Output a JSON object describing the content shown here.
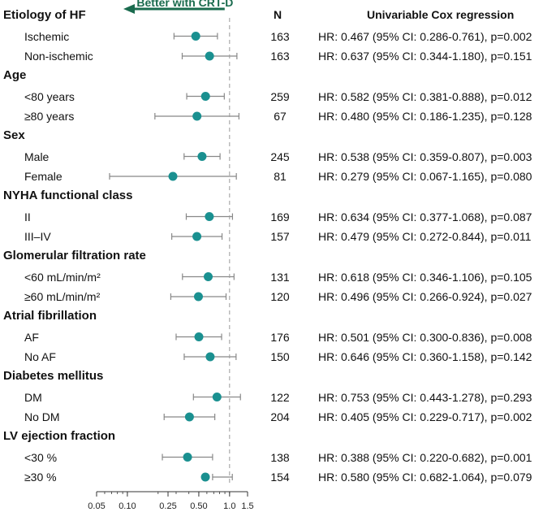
{
  "chart_data": {
    "type": "forest",
    "arrow_label": "Better with CRT-D",
    "n_header": "N",
    "stat_header": "Univariable Cox regression",
    "x_ticks": [
      0.05,
      0.1,
      0.25,
      0.5,
      1.0,
      1.5
    ],
    "x_tick_labels": [
      "0.05",
      "0.10",
      "0.25",
      "0.50",
      "1.0",
      "1.5"
    ],
    "x_scale": "log",
    "xlim": [
      0.05,
      1.5
    ],
    "reference_line": 1.0,
    "colors": {
      "point": "#1a9090",
      "ci": "#888888",
      "ref": "#999999",
      "arrow": "#1a6b4e"
    },
    "groups": [
      {
        "label": "Etiology of HF",
        "rows": [
          {
            "label": "Ischemic",
            "n": "163",
            "hr": 0.467,
            "lo": 0.286,
            "hi": 0.761,
            "text": "HR: 0.467 (95% CI: 0.286-0.761), p=0.002"
          },
          {
            "label": "Non-ischemic",
            "n": "163",
            "hr": 0.637,
            "lo": 0.344,
            "hi": 1.18,
            "text": "HR: 0.637 (95% CI: 0.344-1.180), p=0.151"
          }
        ]
      },
      {
        "label": "Age",
        "rows": [
          {
            "label": "<80 years",
            "n": "259",
            "hr": 0.582,
            "lo": 0.381,
            "hi": 0.888,
            "text": "HR: 0.582 (95% CI: 0.381-0.888), p=0.012"
          },
          {
            "label": "≥80 years",
            "n": "67",
            "hr": 0.48,
            "lo": 0.186,
            "hi": 1.235,
            "text": "HR: 0.480 (95% CI: 0.186-1.235), p=0.128"
          }
        ]
      },
      {
        "label": "Sex",
        "rows": [
          {
            "label": "Male",
            "n": "245",
            "hr": 0.538,
            "lo": 0.359,
            "hi": 0.807,
            "text": "HR: 0.538 (95% CI: 0.359-0.807), p=0.003"
          },
          {
            "label": "Female",
            "n": "81",
            "hr": 0.279,
            "lo": 0.067,
            "hi": 1.165,
            "text": "HR: 0.279 (95% CI: 0.067-1.165), p=0.080"
          }
        ]
      },
      {
        "label": "NYHA functional class",
        "rows": [
          {
            "label": "II",
            "n": "169",
            "hr": 0.634,
            "lo": 0.377,
            "hi": 1.068,
            "text": "HR: 0.634 (95% CI: 0.377-1.068), p=0.087"
          },
          {
            "label": "III–IV",
            "n": "157",
            "hr": 0.479,
            "lo": 0.272,
            "hi": 0.844,
            "text": "HR: 0.479 (95% CI: 0.272-0.844), p=0.011"
          }
        ]
      },
      {
        "label": "Glomerular filtration rate",
        "rows": [
          {
            "label": "<60 mL/min/m²",
            "n": "131",
            "hr": 0.618,
            "lo": 0.346,
            "hi": 1.106,
            "text": "HR: 0.618 (95% CI: 0.346-1.106), p=0.105"
          },
          {
            "label": "≥60 mL/min/m²",
            "n": "120",
            "hr": 0.496,
            "lo": 0.266,
            "hi": 0.924,
            "text": "HR: 0.496 (95% CI: 0.266-0.924), p=0.027"
          }
        ]
      },
      {
        "label": "Atrial fibrillation",
        "rows": [
          {
            "label": "AF",
            "n": "176",
            "hr": 0.501,
            "lo": 0.3,
            "hi": 0.836,
            "text": "HR: 0.501 (95% CI: 0.300-0.836), p=0.008"
          },
          {
            "label": "No AF",
            "n": "150",
            "hr": 0.646,
            "lo": 0.36,
            "hi": 1.158,
            "text": "HR: 0.646 (95% CI: 0.360-1.158), p=0.142"
          }
        ]
      },
      {
        "label": "Diabetes mellitus",
        "rows": [
          {
            "label": "DM",
            "n": "122",
            "hr": 0.753,
            "lo": 0.443,
            "hi": 1.278,
            "text": "HR: 0.753 (95% CI: 0.443-1.278), p=0.293"
          },
          {
            "label": "No DM",
            "n": "204",
            "hr": 0.405,
            "lo": 0.229,
            "hi": 0.717,
            "text": "HR: 0.405 (95% CI: 0.229-0.717), p=0.002"
          }
        ]
      },
      {
        "label": "LV ejection fraction",
        "rows": [
          {
            "label": "<30 %",
            "n": "138",
            "hr": 0.388,
            "lo": 0.22,
            "hi": 0.682,
            "text": "HR: 0.388 (95% CI: 0.220-0.682), p=0.001"
          },
          {
            "label": "≥30 %",
            "n": "154",
            "hr": 0.58,
            "lo": 0.682,
            "hi": 1.064,
            "text": "HR: 0.580 (95% CI: 0.682-1.064), p=0.079"
          }
        ]
      }
    ]
  }
}
